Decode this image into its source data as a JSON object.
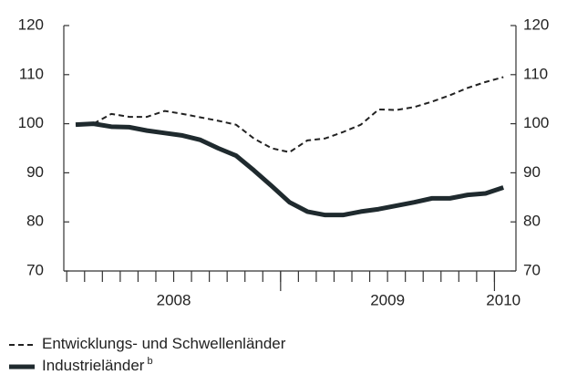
{
  "chart_data": {
    "type": "line",
    "categories": [
      null,
      null,
      null,
      null,
      null,
      null,
      null,
      null,
      null,
      null,
      null,
      null,
      null,
      null,
      null,
      null,
      null,
      null,
      null,
      null,
      null,
      null,
      null,
      null,
      null
    ],
    "x_groups": [
      {
        "label": "2008",
        "start": 0,
        "end": 11
      },
      {
        "label": "2009",
        "start": 12,
        "end": 23
      },
      {
        "label": "2010",
        "start": 24,
        "end": 24
      }
    ],
    "series": [
      {
        "name": "Entwicklungs- und Schwellenländer",
        "color": "#222222",
        "style": "dashed",
        "values": [
          99.7,
          100,
          102,
          101.4,
          101.4,
          102.6,
          102,
          101.3,
          100.6,
          99.8,
          97,
          95,
          94.2,
          96.6,
          97,
          98.3,
          99.8,
          102.9,
          102.8,
          103.4,
          104.5,
          105.8,
          107.3,
          108.5,
          109.5
        ]
      },
      {
        "name": "Industrieländer",
        "name_superscript": "b",
        "color": "#1f2a2e",
        "style": "solid",
        "values": [
          99.8,
          100,
          99.4,
          99.3,
          98.6,
          98.1,
          97.6,
          96.7,
          95,
          93.5,
          90.5,
          87.3,
          84,
          82.1,
          81.4,
          81.4,
          82.1,
          82.6,
          83.3,
          84,
          84.8,
          84.8,
          85.5,
          85.8,
          87
        ]
      }
    ],
    "ylim": [
      70,
      120
    ],
    "yticks": [
      70,
      80,
      90,
      100,
      110,
      120
    ],
    "y2lim": [
      70,
      120
    ],
    "y2ticks": [
      70,
      80,
      90,
      100,
      110,
      120
    ]
  }
}
